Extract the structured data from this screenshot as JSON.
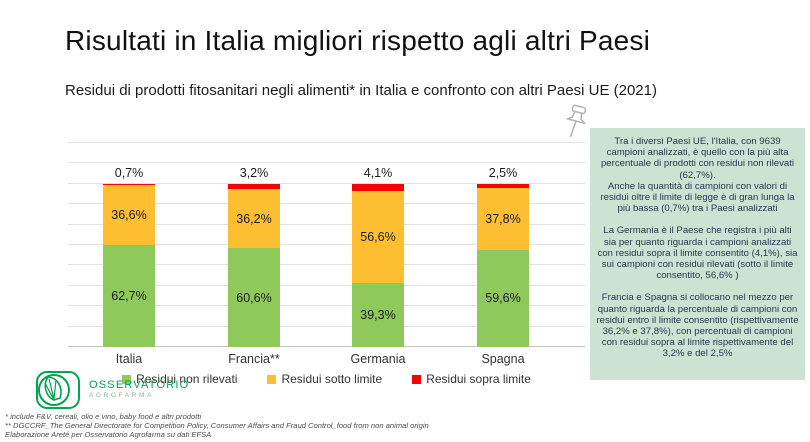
{
  "slide": {
    "title": "Risultati in Italia migliori rispetto agli altri Paesi",
    "subtitle": "Residui di prodotti fitosanitari negli alimenti* in Italia e confronto con altri Paesi UE (2021)"
  },
  "chart_data": {
    "type": "bar",
    "stacked": true,
    "categories": [
      "Italia",
      "Francia**",
      "Germania",
      "Spagna"
    ],
    "series": [
      {
        "name": "Residui non rilevati",
        "color": "#8fc95c",
        "values": [
          62.7,
          60.6,
          39.3,
          59.6
        ],
        "labels": [
          "62,7%",
          "60,6%",
          "39,3%",
          "59,6%"
        ]
      },
      {
        "name": "Residui sotto limite",
        "color": "#fdbe32",
        "values": [
          36.6,
          36.2,
          56.6,
          37.8
        ],
        "labels": [
          "36,6%",
          "36,2%",
          "56,6%",
          "37,8%"
        ]
      },
      {
        "name": "Residui sopra limite",
        "color": "#fb0000",
        "values": [
          0.7,
          3.2,
          4.1,
          2.5
        ],
        "labels": [
          "0,7%",
          "3,2%",
          "4,1%",
          "2,5%"
        ]
      }
    ],
    "above_bar_labels": [
      "0,7%",
      "3,2%",
      "4,1%",
      "2,5%"
    ],
    "ylim": [
      0,
      110
    ],
    "grid": true,
    "legend_position": "bottom"
  },
  "note_box": {
    "paragraphs": [
      "Tra i diversi Paesi UE, l'Italia, con 9639 campioni analizzati, è quello con la più alta percentuale di prodotti con residui non rilevati (62,7%).",
      "Anche la quantità di campioni con valori di residui oltre il limite di legge è di gran lunga la più bassa (0,7%) tra i Paesi analizzati",
      "La Germania è il Paese che registra i più alti sia per quanto riguarda i campioni analizzati con residui sopra il limite consentito (4,1%), sia sui campioni con residui rilevati (sotto il limite consentito, 56,6% )",
      "Francia e Spagna si collocano nel mezzo per quanto riguarda la percentuale di campioni con residui entro il limite consentito (rispettivamente 36,2% e 37,8%), con percentuali di campioni con residui sopra al limite rispettivamente del 3,2% e del 2,5%"
    ]
  },
  "logo": {
    "line1": "OSSERVATORIO",
    "line2": "AGROFARMA"
  },
  "footnotes": [
    "* include F&V, cereali, olio e vino, baby food e altri prodotti",
    "** DGCCRF_The General Directorate for Competition Policy, Consumer Affairs and Fraud Control_food from non animal origin",
    "Elaborazione Areté per Osservatorio Agrofarma su dati EFSA"
  ],
  "colors": {
    "note_box_bg": "#cee2d3",
    "logo_green": "#00a551",
    "gridline": "#e2e2e2"
  }
}
